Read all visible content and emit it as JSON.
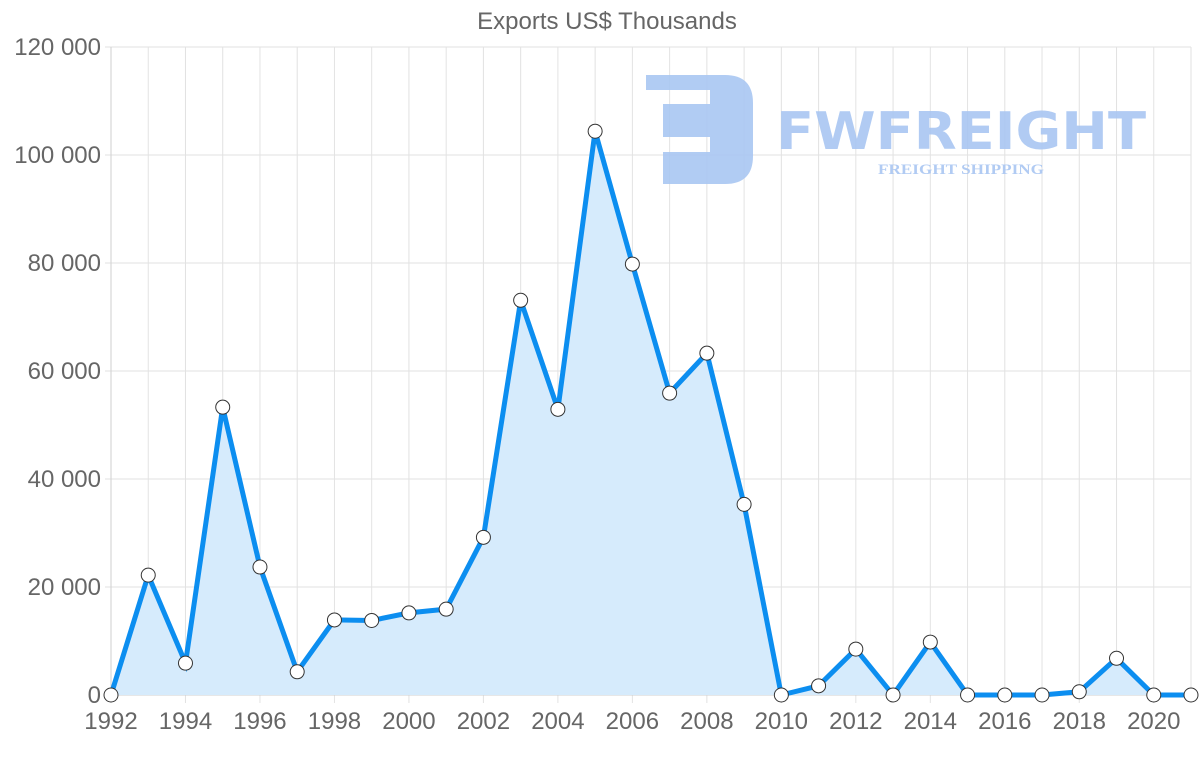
{
  "chart_data": {
    "type": "line",
    "title": "Exports US$ Thousands",
    "xlabel": "",
    "ylabel": "",
    "ylim": [
      0,
      120000
    ],
    "grid": true,
    "legend": null,
    "filled": true,
    "x": [
      1992,
      1993,
      1994,
      1995,
      1996,
      1997,
      1998,
      1999,
      2000,
      2001,
      2002,
      2003,
      2004,
      2005,
      2006,
      2007,
      2008,
      2009,
      2010,
      2011,
      2012,
      2013,
      2014,
      2015,
      2016,
      2017,
      2018,
      2019,
      2020,
      2021
    ],
    "series": [
      {
        "name": "Exports US$ Thousands",
        "values": [
          0,
          22200,
          5900,
          53300,
          23700,
          4300,
          13900,
          13800,
          15200,
          15900,
          29200,
          73100,
          52900,
          104400,
          79800,
          55900,
          63300,
          35300,
          0,
          1700,
          8500,
          0,
          9800,
          0,
          0,
          0,
          600,
          6800,
          0,
          0
        ]
      }
    ],
    "x_tick_labels": [
      "1992",
      "1994",
      "1996",
      "1998",
      "2000",
      "2002",
      "2004",
      "2006",
      "2008",
      "2010",
      "2012",
      "2014",
      "2016",
      "2018",
      "2020"
    ],
    "y_tick_labels": [
      "0",
      "20 000",
      "40 000",
      "60 000",
      "80 000",
      "100 000",
      "120 000"
    ],
    "y_ticks": [
      0,
      20000,
      40000,
      60000,
      80000,
      100000,
      120000
    ],
    "colors": {
      "line": "#0c8ef0",
      "fill": "#d6ebfc",
      "point_fill": "#ffffff",
      "point_stroke": "#333333",
      "grid": "#e2e2e2",
      "text": "#666666"
    }
  },
  "watermark": {
    "brand": "FWFREIGHT",
    "tagline": "FREIGHT SHIPPING",
    "color": "#a9c6f2"
  }
}
